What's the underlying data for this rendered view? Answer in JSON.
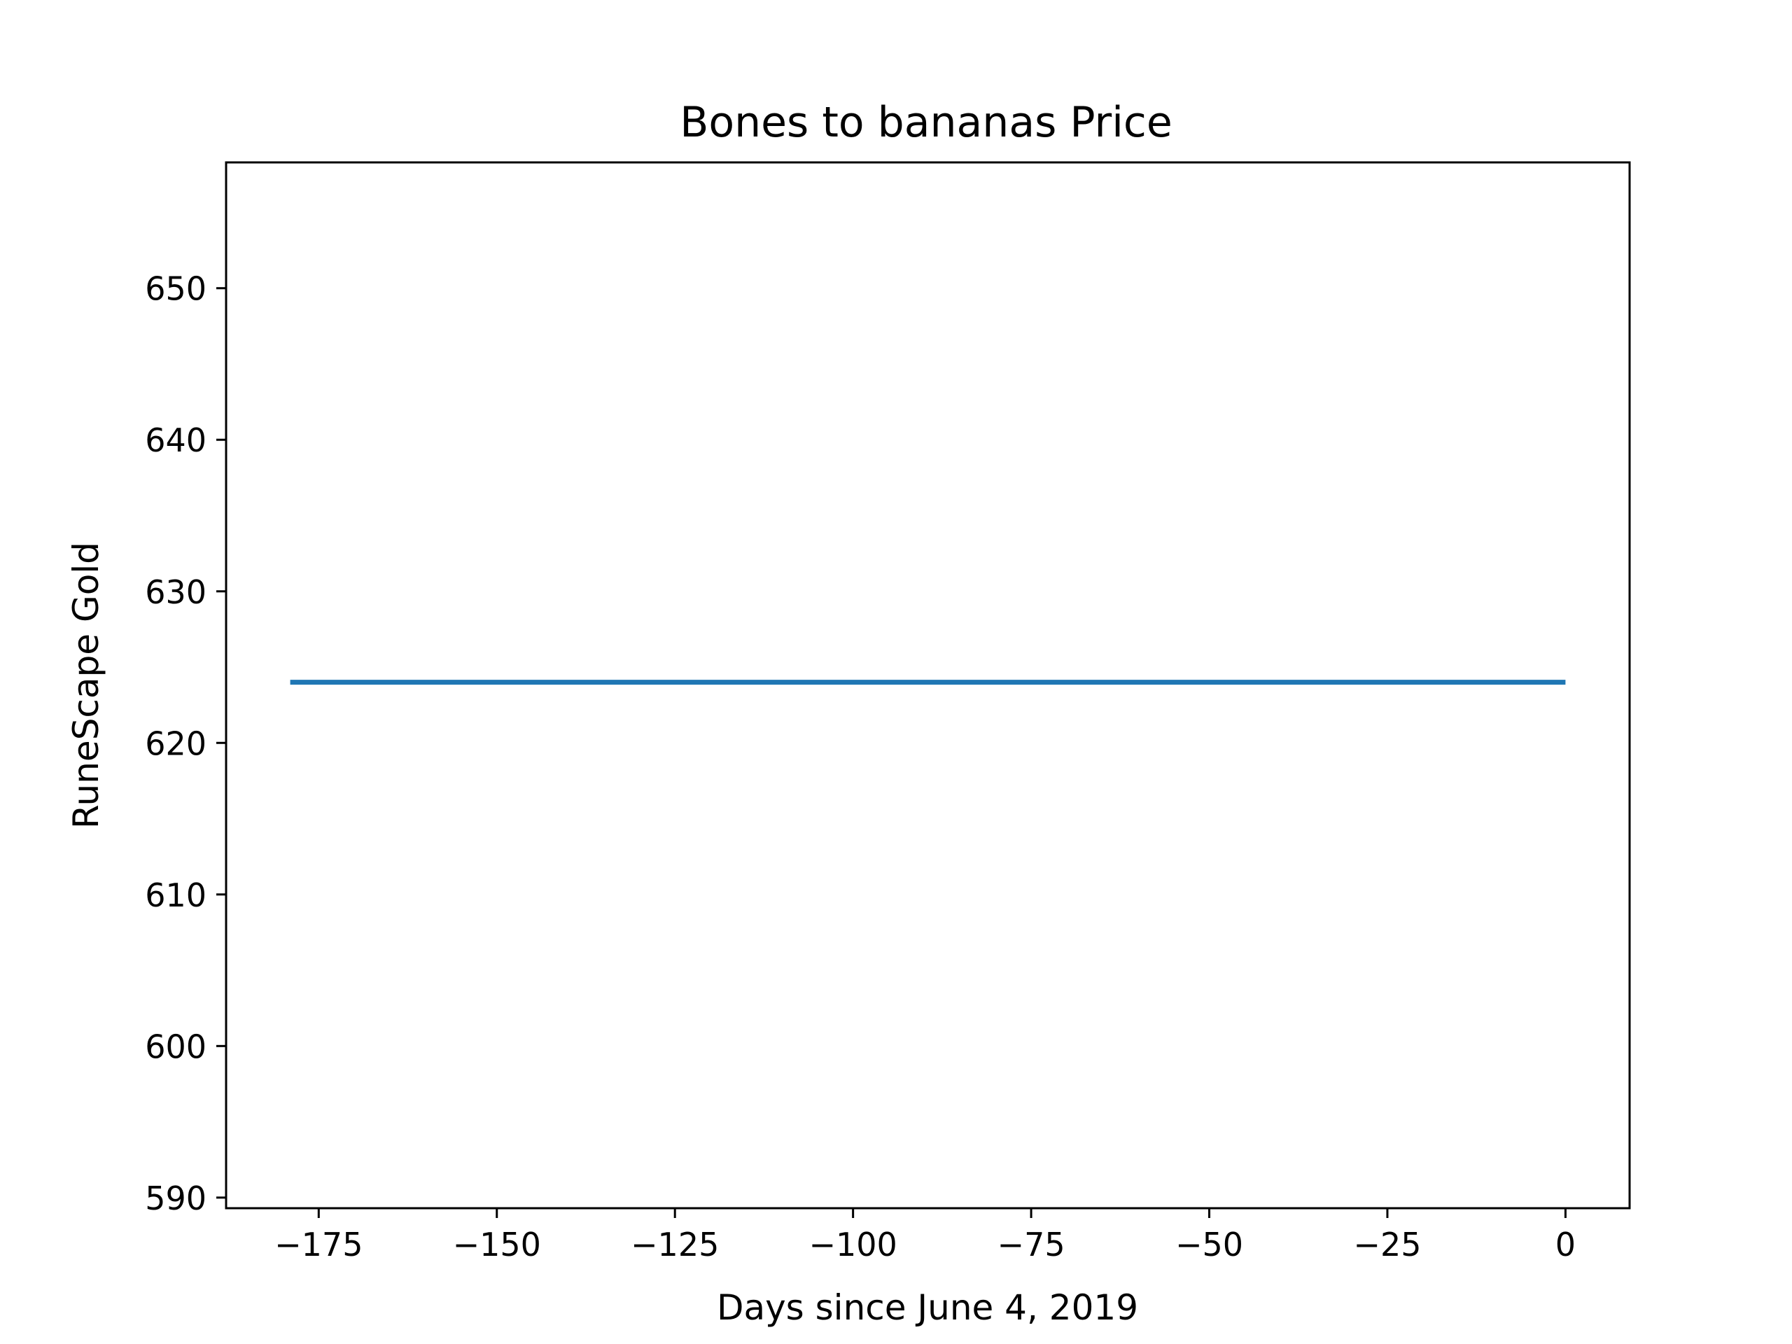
{
  "chart_data": {
    "type": "line",
    "title": "Bones to bananas Price",
    "xlabel": "Days since June 4, 2019",
    "ylabel": "RuneScape Gold",
    "xlim": [
      -188,
      9
    ],
    "ylim": [
      589.3,
      658.3
    ],
    "xticks": [
      -175,
      -150,
      -125,
      -100,
      -75,
      -50,
      -25,
      0
    ],
    "xtick_labels": [
      "−175",
      "−150",
      "−125",
      "−100",
      "−75",
      "−50",
      "−25",
      "0"
    ],
    "yticks": [
      590,
      600,
      610,
      620,
      630,
      640,
      650
    ],
    "ytick_labels": [
      "590",
      "600",
      "610",
      "620",
      "630",
      "640",
      "650"
    ],
    "grid": false,
    "series": [
      {
        "color": "#1f77b4",
        "x": [
          -179,
          -150,
          -125,
          -100,
          -75,
          -50,
          -25,
          0
        ],
        "y": [
          624,
          624,
          624,
          624,
          624,
          624,
          624,
          624
        ]
      }
    ]
  }
}
